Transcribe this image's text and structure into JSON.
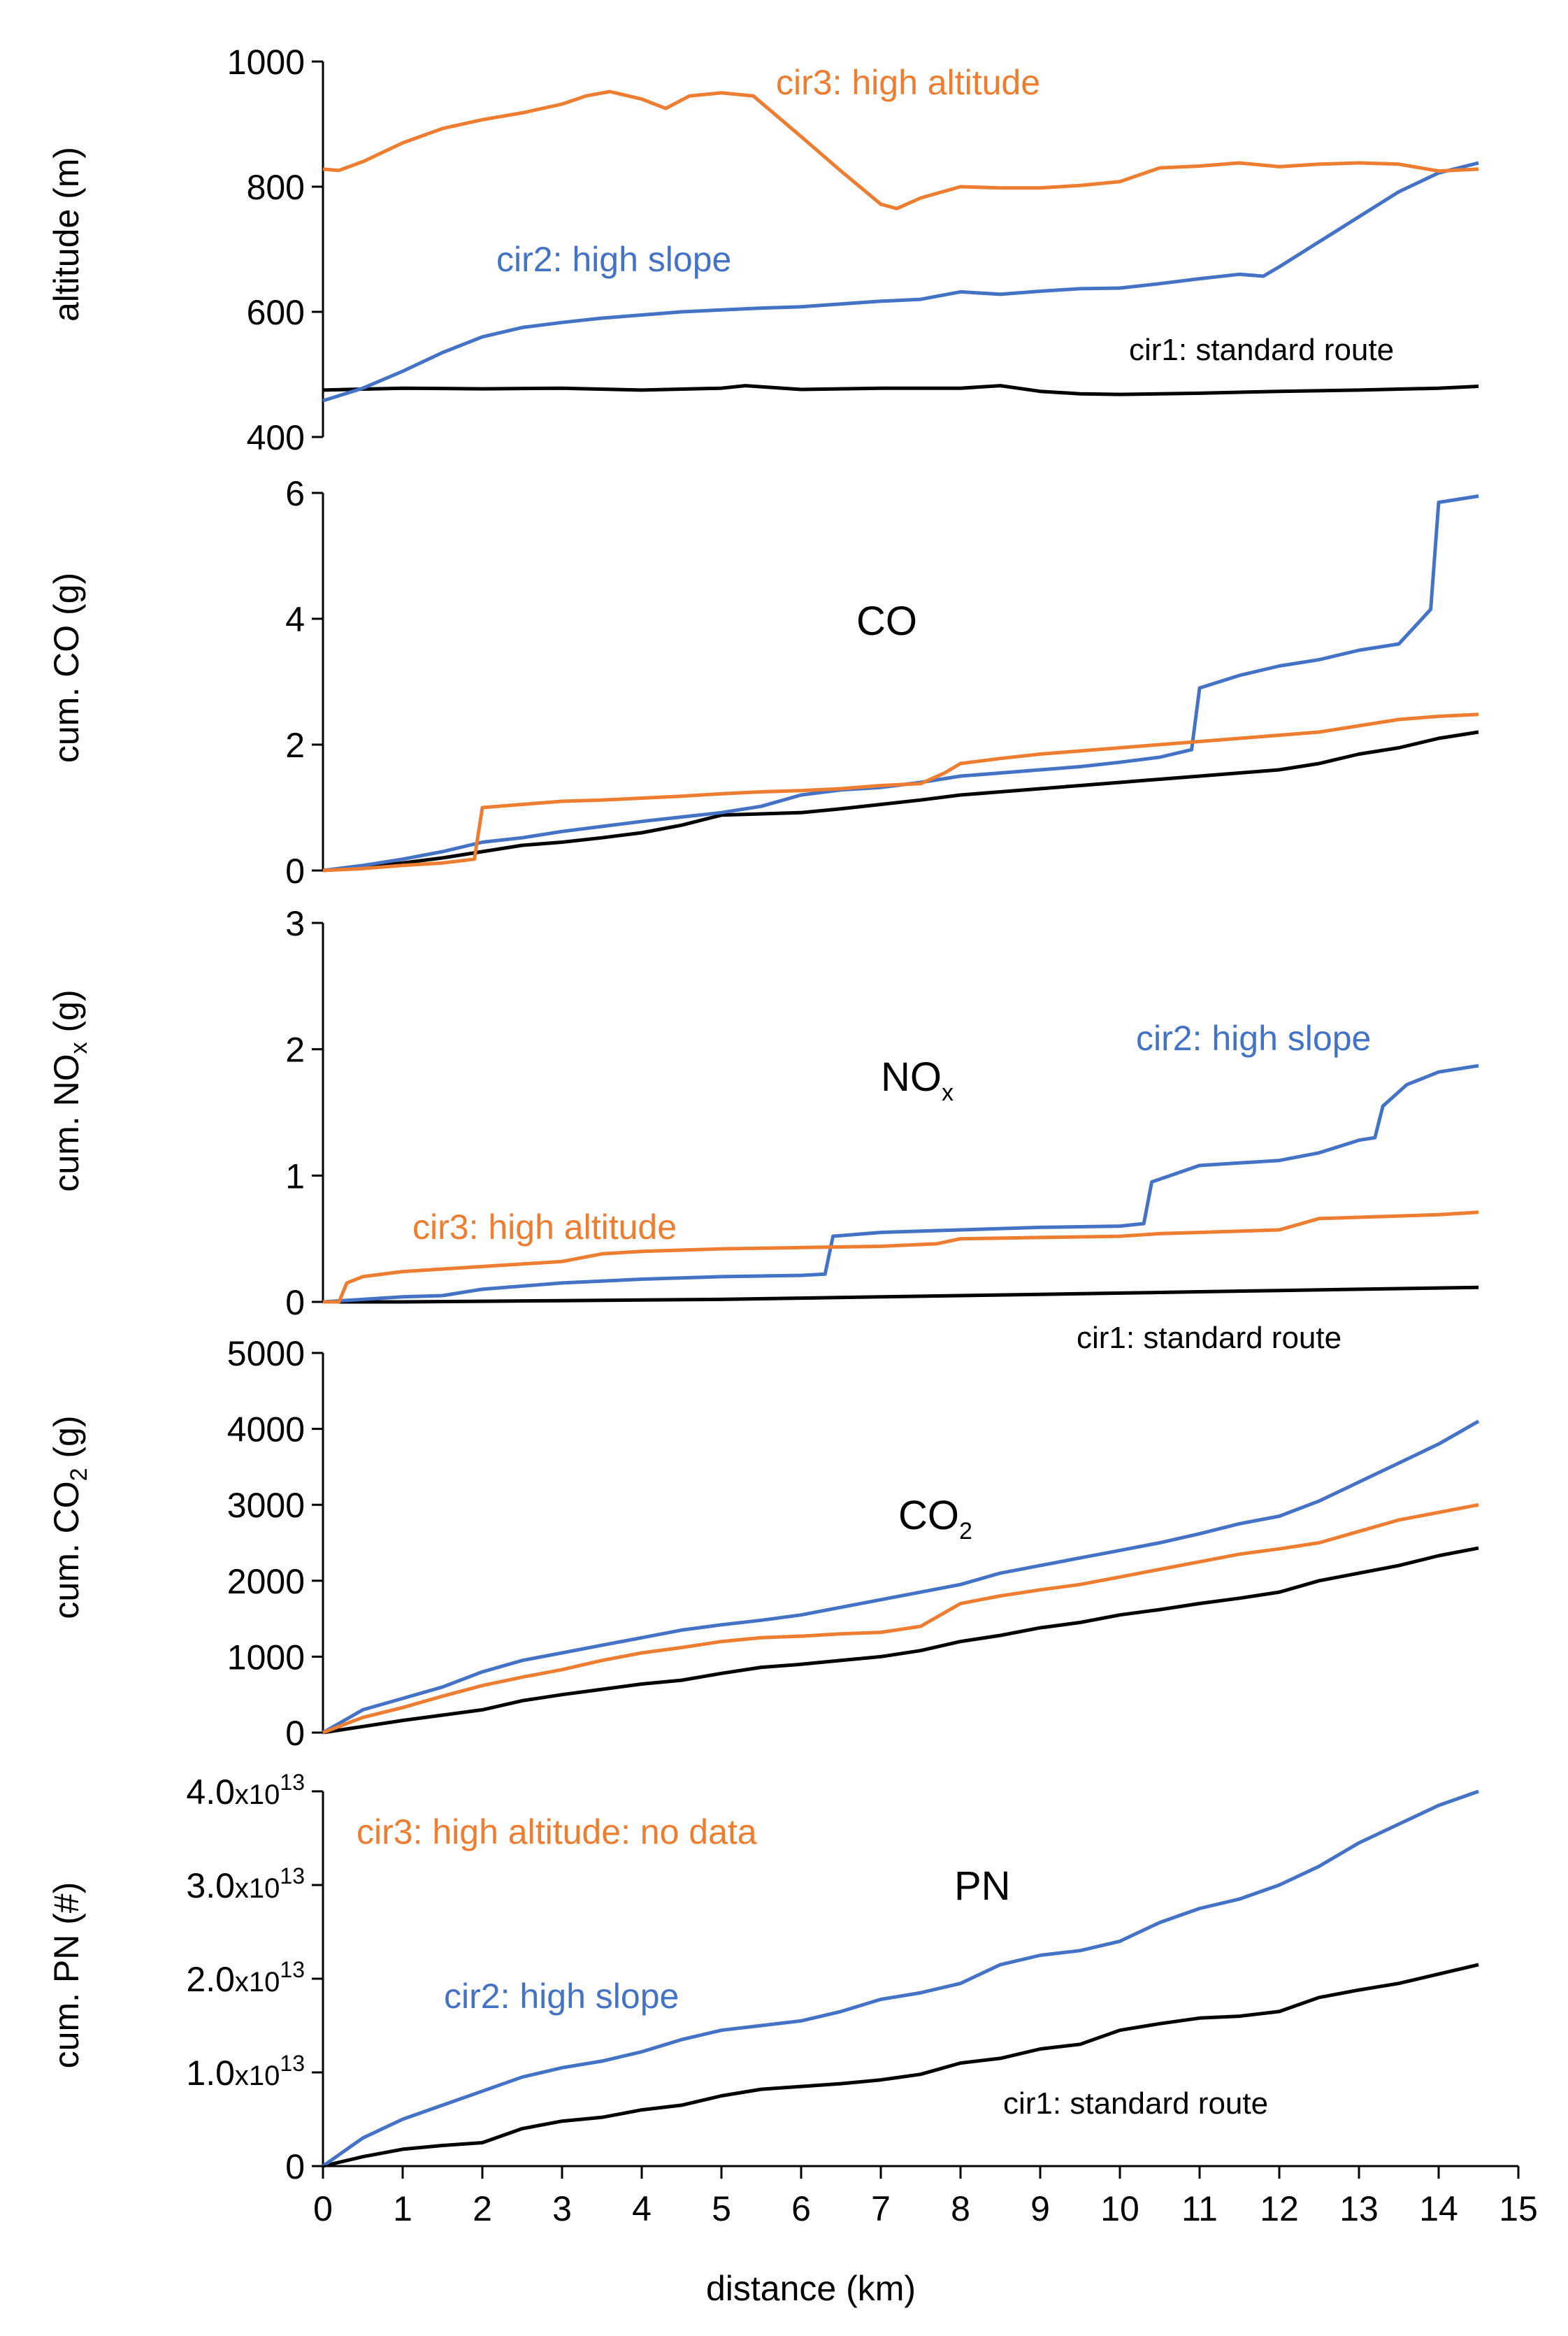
{
  "colors": {
    "cir1": "#000000",
    "cir2": "#4472C4",
    "cir3": "#ED7D31",
    "axis": "#000000"
  },
  "xaxis": {
    "label": "distance (km)",
    "ticks": [
      "0",
      "1",
      "2",
      "3",
      "4",
      "5",
      "6",
      "7",
      "8",
      "9",
      "10",
      "11",
      "12",
      "13",
      "14",
      "15"
    ],
    "range": [
      0,
      15
    ]
  },
  "panels": [
    {
      "key": "altitude",
      "ylabel": "altitude (m)",
      "ticks": [
        "400",
        "600",
        "800",
        "1000"
      ],
      "name": "",
      "annotations": [
        {
          "text": "cir3: high altitude",
          "series": "cir3"
        },
        {
          "text": "cir2: high slope",
          "series": "cir2"
        },
        {
          "text": "cir1: standard route",
          "series": "cir1"
        }
      ]
    },
    {
      "key": "co",
      "ylabel": "cum. CO (g)",
      "ticks": [
        "0",
        "2",
        "4",
        "6"
      ],
      "name": "CO",
      "annotations": []
    },
    {
      "key": "nox",
      "ylabel_main": "cum. NO",
      "ylabel_sub": "x",
      "ylabel_end": " (g)",
      "ticks": [
        "0",
        "1",
        "2",
        "3"
      ],
      "name_main": "NO",
      "name_sub": "x",
      "annotations": [
        {
          "text": "cir2: high slope",
          "series": "cir2"
        },
        {
          "text": "cir3: high altitude",
          "series": "cir3"
        },
        {
          "text": "cir1: standard route",
          "series": "cir1"
        }
      ]
    },
    {
      "key": "co2",
      "ylabel_main": "cum. CO",
      "ylabel_sub": "2",
      "ylabel_end": " (g)",
      "ticks": [
        "0",
        "1000",
        "2000",
        "3000",
        "4000",
        "5000"
      ],
      "name_main": "CO",
      "name_sub": "2",
      "annotations": []
    },
    {
      "key": "pn",
      "ylabel": "cum. PN (#)",
      "ticks": [
        {
          "main": "0",
          "x": "",
          "exp": ""
        },
        {
          "main": "1.0",
          "x": "x10",
          "exp": "13"
        },
        {
          "main": "2.0",
          "x": "x10",
          "exp": "13"
        },
        {
          "main": "3.0",
          "x": "x10",
          "exp": "13"
        },
        {
          "main": "4.0",
          "x": "x10",
          "exp": "13"
        }
      ],
      "name": "PN",
      "annotations": [
        {
          "text": "cir3: high altitude: no data",
          "series": "cir3"
        },
        {
          "text": "cir2: high slope",
          "series": "cir2"
        },
        {
          "text": "cir1: standard route",
          "series": "cir1"
        }
      ]
    }
  ],
  "chart_data": [
    {
      "type": "line",
      "title": "",
      "xlabel": "distance (km)",
      "ylabel": "altitude (m)",
      "xlim": [
        0,
        15
      ],
      "ylim": [
        400,
        1000
      ],
      "series": [
        {
          "name": "cir1: standard route",
          "x": [
            0,
            1,
            2,
            3,
            4,
            5,
            5.3,
            6,
            7,
            8,
            8.5,
            9,
            9.5,
            10,
            11,
            12,
            13,
            14,
            14.5
          ],
          "y": [
            475,
            478,
            477,
            478,
            475,
            478,
            482,
            476,
            478,
            478,
            482,
            473,
            469,
            468,
            470,
            473,
            475,
            478,
            481
          ]
        },
        {
          "name": "cir2: high slope",
          "x": [
            0,
            0.5,
            1,
            1.5,
            2,
            2.5,
            3,
            3.5,
            4,
            4.5,
            5,
            5.5,
            6,
            7,
            7.5,
            8,
            8.5,
            9,
            9.5,
            10,
            10.5,
            11,
            11.5,
            11.8,
            12,
            12.5,
            13,
            13.5,
            14,
            14.5
          ],
          "y": [
            458,
            478,
            505,
            535,
            560,
            575,
            583,
            590,
            595,
            600,
            603,
            606,
            608,
            617,
            620,
            632,
            628,
            633,
            637,
            638,
            645,
            653,
            660,
            657,
            672,
            712,
            752,
            792,
            822,
            838
          ]
        },
        {
          "name": "cir3: high altitude",
          "x": [
            0,
            0.2,
            0.5,
            1,
            1.5,
            2,
            2.5,
            3,
            3.3,
            3.6,
            4,
            4.3,
            4.6,
            5,
            5.4,
            6,
            6.5,
            7,
            7.2,
            7.5,
            8,
            8.5,
            9,
            9.5,
            10,
            10.5,
            11,
            11.5,
            12,
            12.5,
            13,
            13.5,
            14,
            14.5
          ],
          "y": [
            828,
            826,
            840,
            870,
            893,
            907,
            918,
            932,
            945,
            952,
            940,
            925,
            945,
            950,
            945,
            880,
            825,
            772,
            765,
            782,
            800,
            798,
            798,
            802,
            808,
            830,
            833,
            838,
            832,
            836,
            838,
            836,
            825,
            828
          ]
        }
      ]
    },
    {
      "type": "line",
      "title": "CO",
      "xlabel": "distance (km)",
      "ylabel": "cum. CO (g)",
      "xlim": [
        0,
        15
      ],
      "ylim": [
        0,
        6
      ],
      "series": [
        {
          "name": "cir1: standard route",
          "x": [
            0,
            0.5,
            1,
            1.5,
            2,
            2.5,
            3,
            3.5,
            4,
            4.5,
            5,
            5.5,
            6,
            6.5,
            7,
            7.5,
            8,
            8.5,
            9,
            9.5,
            10,
            10.5,
            11,
            11.5,
            12,
            12.5,
            13,
            13.5,
            14,
            14.5
          ],
          "y": [
            0,
            0.05,
            0.12,
            0.2,
            0.3,
            0.4,
            0.45,
            0.52,
            0.6,
            0.72,
            0.88,
            0.9,
            0.92,
            0.98,
            1.05,
            1.12,
            1.2,
            1.25,
            1.3,
            1.35,
            1.4,
            1.45,
            1.5,
            1.55,
            1.6,
            1.7,
            1.85,
            1.95,
            2.1,
            2.2
          ]
        },
        {
          "name": "cir2: high slope",
          "x": [
            0,
            0.5,
            1,
            1.5,
            2,
            2.5,
            3,
            3.5,
            4,
            4.5,
            5,
            5.5,
            6,
            6.5,
            7,
            7.5,
            8,
            8.5,
            9,
            9.5,
            10,
            10.5,
            10.9,
            11,
            11.5,
            12,
            12.5,
            13,
            13.5,
            13.9,
            14,
            14.5
          ],
          "y": [
            0,
            0.08,
            0.18,
            0.3,
            0.45,
            0.52,
            0.62,
            0.7,
            0.78,
            0.85,
            0.92,
            1.02,
            1.2,
            1.28,
            1.32,
            1.4,
            1.5,
            1.55,
            1.6,
            1.65,
            1.72,
            1.8,
            1.92,
            2.9,
            3.1,
            3.25,
            3.35,
            3.5,
            3.6,
            4.15,
            5.85,
            5.95
          ]
        },
        {
          "name": "cir3: high altitude",
          "x": [
            0,
            0.5,
            1,
            1.5,
            1.9,
            2,
            2.5,
            3,
            3.5,
            4,
            4.5,
            5,
            5.5,
            6,
            6.5,
            7,
            7.5,
            7.8,
            8,
            8.5,
            9,
            9.5,
            10,
            10.5,
            11,
            11.5,
            12,
            12.5,
            13,
            13.5,
            14,
            14.5
          ],
          "y": [
            0,
            0.03,
            0.08,
            0.12,
            0.18,
            1.0,
            1.05,
            1.1,
            1.12,
            1.15,
            1.18,
            1.22,
            1.25,
            1.27,
            1.3,
            1.35,
            1.38,
            1.55,
            1.7,
            1.78,
            1.85,
            1.9,
            1.95,
            2.0,
            2.05,
            2.1,
            2.15,
            2.2,
            2.3,
            2.4,
            2.45,
            2.48
          ]
        }
      ]
    },
    {
      "type": "line",
      "title": "NOx",
      "xlabel": "distance (km)",
      "ylabel": "cum. NOx (g)",
      "xlim": [
        0,
        15
      ],
      "ylim": [
        0,
        3
      ],
      "series": [
        {
          "name": "cir1: standard route",
          "x": [
            0,
            1,
            2,
            3,
            4,
            5,
            6,
            7,
            8,
            9,
            10,
            11,
            12,
            13,
            14,
            14.5
          ],
          "y": [
            0,
            0,
            0.005,
            0.01,
            0.015,
            0.02,
            0.03,
            0.04,
            0.05,
            0.06,
            0.07,
            0.08,
            0.09,
            0.1,
            0.11,
            0.115
          ]
        },
        {
          "name": "cir2: high slope",
          "x": [
            0,
            0.5,
            1,
            1.5,
            1.8,
            2,
            3,
            4,
            5,
            6,
            6.3,
            6.4,
            7,
            8,
            9,
            10,
            10.3,
            10.4,
            11,
            12,
            12.5,
            13,
            13.2,
            13.3,
            13.6,
            14,
            14.5
          ],
          "y": [
            0,
            0.02,
            0.04,
            0.05,
            0.08,
            0.1,
            0.15,
            0.18,
            0.2,
            0.21,
            0.22,
            0.52,
            0.55,
            0.57,
            0.59,
            0.6,
            0.62,
            0.95,
            1.08,
            1.12,
            1.18,
            1.28,
            1.3,
            1.55,
            1.72,
            1.82,
            1.87
          ]
        },
        {
          "name": "cir3: high altitude",
          "x": [
            0,
            0.2,
            0.3,
            0.5,
            1,
            1.5,
            2,
            3,
            3.5,
            4,
            5,
            6,
            7,
            7.7,
            8,
            9,
            10,
            10.5,
            11,
            12,
            12.5,
            13,
            14,
            14.5
          ],
          "y": [
            0,
            0,
            0.15,
            0.2,
            0.24,
            0.26,
            0.28,
            0.32,
            0.38,
            0.4,
            0.42,
            0.43,
            0.44,
            0.46,
            0.5,
            0.51,
            0.52,
            0.54,
            0.55,
            0.57,
            0.66,
            0.67,
            0.69,
            0.71
          ]
        }
      ]
    },
    {
      "type": "line",
      "title": "CO2",
      "xlabel": "distance (km)",
      "ylabel": "cum. CO2 (g)",
      "xlim": [
        0,
        15
      ],
      "ylim": [
        0,
        5000
      ],
      "series": [
        {
          "name": "cir1: standard route",
          "x": [
            0,
            0.5,
            1,
            1.5,
            2,
            2.5,
            3,
            3.5,
            4,
            4.5,
            5,
            5.5,
            6,
            6.5,
            7,
            7.5,
            8,
            8.5,
            9,
            9.5,
            10,
            10.5,
            11,
            11.5,
            12,
            12.5,
            13,
            13.5,
            14,
            14.5
          ],
          "y": [
            0,
            80,
            160,
            230,
            300,
            420,
            500,
            570,
            640,
            690,
            780,
            860,
            900,
            950,
            1000,
            1080,
            1200,
            1280,
            1380,
            1450,
            1550,
            1620,
            1700,
            1770,
            1850,
            2000,
            2100,
            2200,
            2330,
            2430
          ]
        },
        {
          "name": "cir2: high slope",
          "x": [
            0,
            0.5,
            1,
            1.5,
            2,
            2.5,
            3,
            3.5,
            4,
            4.5,
            5,
            5.5,
            6,
            6.5,
            7,
            7.5,
            8,
            8.5,
            9,
            9.5,
            10,
            10.5,
            11,
            11.5,
            12,
            12.5,
            13,
            13.5,
            14,
            14.5
          ],
          "y": [
            0,
            300,
            450,
            600,
            800,
            950,
            1050,
            1150,
            1250,
            1350,
            1420,
            1480,
            1550,
            1650,
            1750,
            1850,
            1950,
            2100,
            2200,
            2300,
            2400,
            2500,
            2620,
            2750,
            2850,
            3050,
            3300,
            3550,
            3800,
            4100
          ]
        },
        {
          "name": "cir3: high altitude",
          "x": [
            0,
            0.5,
            1,
            1.5,
            2,
            2.5,
            3,
            3.5,
            4,
            4.5,
            5,
            5.5,
            6,
            6.5,
            7,
            7.5,
            8,
            8.5,
            9,
            9.5,
            10,
            10.5,
            11,
            11.5,
            12,
            12.5,
            13,
            13.5,
            14,
            14.5
          ],
          "y": [
            0,
            200,
            330,
            480,
            620,
            730,
            830,
            950,
            1050,
            1120,
            1200,
            1250,
            1270,
            1300,
            1320,
            1400,
            1700,
            1800,
            1880,
            1950,
            2050,
            2150,
            2250,
            2350,
            2420,
            2500,
            2650,
            2800,
            2900,
            3000
          ]
        }
      ]
    },
    {
      "type": "line",
      "title": "PN",
      "xlabel": "distance (km)",
      "ylabel": "cum. PN (#)",
      "xlim": [
        0,
        15
      ],
      "ylim": [
        0,
        40000000000000.0
      ],
      "series": [
        {
          "name": "cir1: standard route",
          "x": [
            0,
            0.5,
            1,
            1.5,
            2,
            2.5,
            3,
            3.5,
            4,
            4.5,
            5,
            5.5,
            6,
            6.5,
            7,
            7.5,
            8,
            8.5,
            9,
            9.5,
            10,
            10.5,
            11,
            11.5,
            12,
            12.5,
            13,
            13.5,
            14,
            14.5
          ],
          "y": [
            0,
            1000000000000.0,
            1800000000000.0,
            2200000000000.0,
            2500000000000.0,
            4000000000000.0,
            4800000000000.0,
            5200000000000.0,
            6000000000000.0,
            6500000000000.0,
            7500000000000.0,
            8200000000000.0,
            8500000000000.0,
            8800000000000.0,
            9200000000000.0,
            9800000000000.0,
            11000000000000.0,
            11500000000000.0,
            12500000000000.0,
            13000000000000.0,
            14500000000000.0,
            15200000000000.0,
            15800000000000.0,
            16000000000000.0,
            16500000000000.0,
            18000000000000.0,
            18800000000000.0,
            19500000000000.0,
            20500000000000.0,
            21500000000000.0
          ]
        },
        {
          "name": "cir2: high slope",
          "x": [
            0,
            0.5,
            1,
            1.5,
            2,
            2.5,
            3,
            3.5,
            4,
            4.5,
            5,
            5.5,
            6,
            6.5,
            7,
            7.5,
            8,
            8.5,
            9,
            9.5,
            10,
            10.5,
            11,
            11.5,
            12,
            12.5,
            13,
            13.5,
            14,
            14.5
          ],
          "y": [
            0,
            3000000000000.0,
            5000000000000.0,
            6500000000000.0,
            8000000000000.0,
            9500000000000.0,
            10500000000000.0,
            11200000000000.0,
            12200000000000.0,
            13500000000000.0,
            14500000000000.0,
            15000000000000.0,
            15500000000000.0,
            16500000000000.0,
            17800000000000.0,
            18500000000000.0,
            19500000000000.0,
            21500000000000.0,
            22500000000000.0,
            23000000000000.0,
            24000000000000.0,
            26000000000000.0,
            27500000000000.0,
            28500000000000.0,
            30000000000000.0,
            32000000000000.0,
            34500000000000.0,
            36500000000000.0,
            38500000000000.0,
            40000000000000.0
          ]
        }
      ]
    }
  ]
}
